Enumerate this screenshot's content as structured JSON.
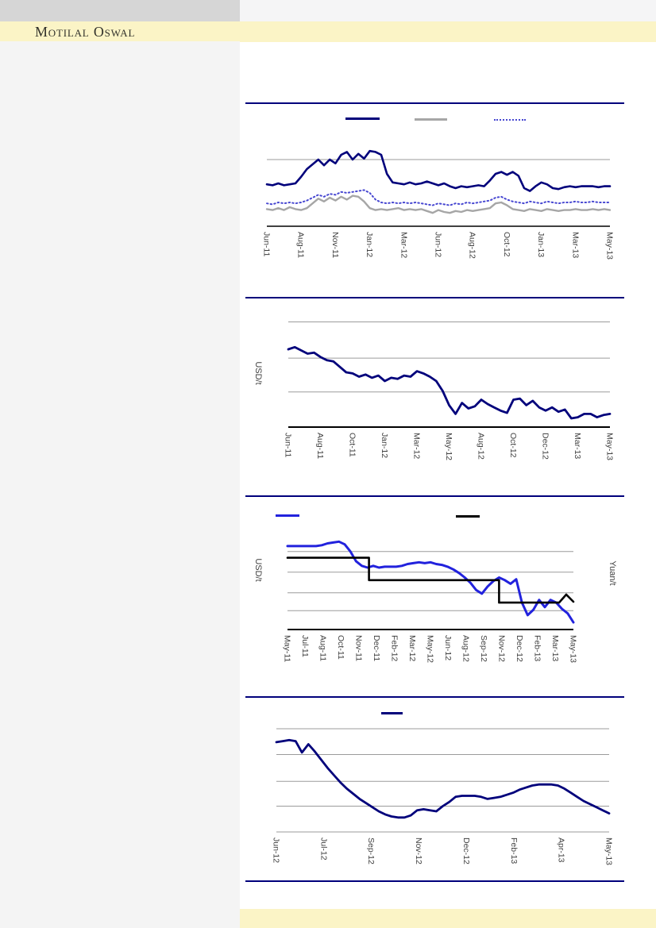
{
  "page": {
    "brand": "Motilal Oswal",
    "colors": {
      "accent_rule": "#00007B",
      "header_footer_band": "#FBF4C6",
      "top_bar": "#D6D6D6",
      "left_column": "#F4F4F4",
      "gridline": "#9B9B9B",
      "tick_text": "#3F3F3F"
    }
  },
  "chart_data": [
    {
      "type": "line",
      "title": "",
      "x_labels": [
        "Jun-11",
        "Aug-11",
        "Nov-11",
        "Jan-12",
        "Mar-12",
        "Jun-12",
        "Aug-12",
        "Oct-12",
        "Jan-13",
        "Mar-13",
        "May-13"
      ],
      "ylabel": "",
      "ylim": [
        0,
        100
      ],
      "gridlines": [
        70
      ],
      "baseline_axis": true,
      "axis_width": 1.4,
      "legend_position": "top",
      "legend": [
        {
          "label": "",
          "color": "#00007B",
          "style": "solid"
        },
        {
          "label": "",
          "color": "#A6A6A6",
          "style": "solid"
        },
        {
          "label": "",
          "color": "#4747D1",
          "style": "dotted"
        }
      ],
      "series": [
        {
          "name": "navy-solid",
          "color": "#00007B",
          "style": "solid",
          "width": 2.6,
          "values": [
            44,
            43,
            45,
            43,
            44,
            45,
            52,
            60,
            65,
            70,
            64,
            70,
            66,
            75,
            78,
            70,
            76,
            71,
            79,
            78,
            75,
            55,
            46,
            45,
            44,
            46,
            44,
            45,
            47,
            45,
            43,
            45,
            42,
            40,
            42,
            41,
            42,
            43,
            42,
            48,
            55,
            57,
            54,
            57,
            53,
            40,
            37,
            42,
            46,
            44,
            40,
            39,
            41,
            42,
            41,
            42,
            42,
            42,
            41,
            42,
            42
          ]
        },
        {
          "name": "gray-solid",
          "color": "#A6A6A6",
          "style": "solid",
          "width": 2.4,
          "values": [
            18,
            17,
            19,
            17,
            20,
            18,
            17,
            19,
            24,
            29,
            26,
            30,
            27,
            31,
            28,
            32,
            31,
            26,
            19,
            17,
            18,
            17,
            18,
            19,
            17,
            18,
            17,
            18,
            16,
            14,
            17,
            15,
            14,
            16,
            15,
            17,
            16,
            17,
            18,
            19,
            24,
            25,
            22,
            18,
            17,
            16,
            18,
            17,
            16,
            18,
            17,
            16,
            17,
            17,
            18,
            17,
            17,
            18,
            17,
            18,
            17
          ]
        },
        {
          "name": "blue-dotted",
          "color": "#4747D1",
          "style": "dotted",
          "width": 2,
          "values": [
            24,
            23,
            25,
            24,
            25,
            24,
            25,
            27,
            30,
            33,
            31,
            34,
            33,
            36,
            35,
            36,
            37,
            38,
            35,
            28,
            25,
            24,
            25,
            24,
            25,
            24,
            25,
            24,
            23,
            22,
            24,
            23,
            22,
            24,
            23,
            25,
            24,
            25,
            26,
            27,
            30,
            31,
            28,
            26,
            25,
            24,
            26,
            25,
            24,
            26,
            25,
            24,
            25,
            25,
            26,
            25,
            25,
            26,
            25,
            25,
            25
          ]
        }
      ]
    },
    {
      "type": "line",
      "title": "",
      "x_labels": [
        "Jun-11",
        "Aug-11",
        "Oct-11",
        "Jan-12",
        "Mar-12",
        "May-12",
        "Aug-12",
        "Oct-12",
        "Dec-12",
        "Mar-13",
        "May-13"
      ],
      "ylabel": "USD/t",
      "ylim": [
        0,
        100
      ],
      "gridlines": [
        96,
        63,
        32
      ],
      "baseline_axis": true,
      "axis_width": 2,
      "legend": [],
      "series": [
        {
          "name": "navy-solid",
          "color": "#00007B",
          "style": "solid",
          "width": 2.8,
          "values": [
            71,
            73,
            70,
            67,
            68,
            64,
            61,
            60,
            55,
            50,
            49,
            46,
            48,
            45,
            47,
            42,
            45,
            44,
            47,
            46,
            51,
            49,
            46,
            42,
            33,
            20,
            12,
            22,
            17,
            19,
            25,
            21,
            18,
            15,
            13,
            25,
            26,
            20,
            24,
            18,
            15,
            18,
            14,
            16,
            8,
            9,
            12,
            12,
            9,
            11,
            12
          ]
        }
      ]
    },
    {
      "type": "line",
      "title": "",
      "x_labels": [
        "May-11",
        "Jul-11",
        "Aug-11",
        "Oct-11",
        "Nov-11",
        "Dec-11",
        "Feb-12",
        "Mar-12",
        "May-12",
        "Jun-12",
        "Aug-12",
        "Sep-12",
        "Nov-12",
        "Dec-12",
        "Feb-13",
        "Mar-13",
        "May-13"
      ],
      "ylabel": "USD/t",
      "y2label": "Yuan/t",
      "ylim": [
        0,
        100
      ],
      "gridlines": [
        87,
        64,
        41,
        21
      ],
      "baseline_axis": true,
      "axis_width": 2,
      "legend_position": "top",
      "legend": [
        {
          "label": "",
          "color": "#2222DD",
          "style": "solid"
        },
        {
          "label": "",
          "color": "#000000",
          "style": "solid"
        }
      ],
      "series": [
        {
          "name": "blue-solid",
          "color": "#2222DD",
          "style": "solid",
          "width": 3,
          "values": [
            93,
            93,
            93,
            93,
            93,
            93,
            94,
            96,
            97,
            98,
            95,
            87,
            76,
            71,
            69,
            71,
            69,
            70,
            70,
            70,
            71,
            73,
            74,
            75,
            74,
            75,
            73,
            72,
            70,
            67,
            63,
            58,
            52,
            44,
            40,
            48,
            54,
            58,
            55,
            51,
            56,
            30,
            16,
            22,
            33,
            25,
            33,
            30,
            23,
            18,
            8
          ]
        },
        {
          "name": "black-step",
          "color": "#000000",
          "style": "solid",
          "width": 2.6,
          "points": [
            [
              0,
              80
            ],
            [
              28.5,
              80
            ],
            [
              28.5,
              55
            ],
            [
              74,
              55
            ],
            [
              74,
              30
            ],
            [
              95,
              30
            ],
            [
              97.5,
              39
            ],
            [
              100,
              31
            ]
          ]
        }
      ]
    },
    {
      "type": "line",
      "title": "",
      "x_labels": [
        "Jun-12",
        "Jul-12",
        "Sep-12",
        "Nov-12",
        "Dec-12",
        "Feb-13",
        "Apr-13",
        "May-13"
      ],
      "ylabel": "",
      "ylim": [
        0,
        100
      ],
      "gridlines": [
        100,
        75,
        49,
        25,
        0
      ],
      "baseline_axis": false,
      "legend_position": "top",
      "legend": [
        {
          "label": "",
          "color": "#00007B",
          "style": "solid"
        }
      ],
      "series": [
        {
          "name": "navy-solid",
          "color": "#00007B",
          "style": "solid",
          "width": 2.8,
          "values": [
            87,
            88,
            89,
            88,
            77,
            85,
            78,
            70,
            62,
            55,
            48,
            42,
            37,
            32,
            28,
            24,
            20,
            17,
            15,
            14,
            14,
            16,
            21,
            22,
            21,
            20,
            25,
            29,
            34,
            35,
            35,
            35,
            34,
            32,
            33,
            34,
            36,
            38,
            41,
            43,
            45,
            46,
            46,
            46,
            45,
            42,
            38,
            34,
            30,
            27,
            24,
            21,
            18
          ]
        }
      ]
    }
  ]
}
